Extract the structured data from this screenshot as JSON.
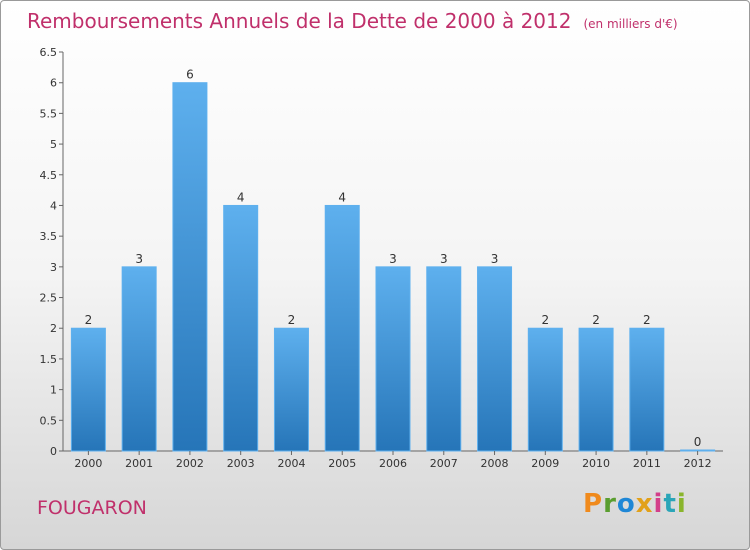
{
  "title": "Remboursements Annuels de la Dette de 2000 à 2012",
  "unit": "(en milliers d'€)",
  "commune": "FOUGARON",
  "logo": {
    "letters": [
      "P",
      "r",
      "o",
      "x",
      "i",
      "t",
      "i"
    ],
    "colors": [
      "#f08a1c",
      "#5a9e2f",
      "#1f87d6",
      "#e2a11a",
      "#d33f8a",
      "#2aa5b8",
      "#8ab52c"
    ]
  },
  "colors": {
    "bar": "#3d93d8",
    "bar_light": "#5eb0ee",
    "bar_dark": "#2675b8",
    "title": "#c0306b"
  },
  "chart_data": {
    "type": "bar",
    "categories": [
      "2000",
      "2001",
      "2002",
      "2003",
      "2004",
      "2005",
      "2006",
      "2007",
      "2008",
      "2009",
      "2010",
      "2011",
      "2012"
    ],
    "values": [
      2,
      3,
      6,
      4,
      2,
      4,
      3,
      3,
      3,
      2,
      2,
      2,
      0
    ],
    "data_labels": [
      "2",
      "3",
      "6",
      "4",
      "2",
      "4",
      "3",
      "3",
      "3",
      "2",
      "2",
      "2",
      "0"
    ],
    "ylim": [
      0,
      6.5
    ],
    "yticks": [
      "0",
      "0.5",
      "1",
      "1.5",
      "2",
      "2.5",
      "3",
      "3.5",
      "4",
      "4.5",
      "5",
      "5.5",
      "6",
      "6.5"
    ],
    "grid": false
  }
}
